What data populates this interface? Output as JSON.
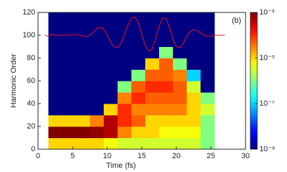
{
  "chart_data": {
    "type": "heatmap",
    "annotation": "(b)",
    "xlabel": "Time (fs)",
    "ylabel": "Harmonic Order",
    "xlim": [
      0,
      30
    ],
    "ylim": [
      0,
      120
    ],
    "xticks": [
      0,
      5,
      10,
      15,
      20,
      25,
      30
    ],
    "yticks": [
      0,
      20,
      40,
      60,
      80,
      100,
      120
    ],
    "x_bins": [
      1.5,
      3.5,
      5.5,
      7.5,
      9.5,
      11.5,
      13.5,
      15.5,
      17.5,
      19.5,
      21.5,
      23.5,
      25.5
    ],
    "y_bins": [
      0,
      10,
      20,
      30,
      40,
      50,
      60,
      70,
      80,
      90,
      100,
      110,
      120
    ],
    "values": [
      [
        1e-05,
        1e-05,
        1e-05,
        1e-05,
        5e-06,
        3e-06,
        3e-06,
        3e-06,
        3e-06,
        3e-06,
        3e-06,
        1e-06
      ],
      [
        0.001,
        0.001,
        0.001,
        0.0008,
        0.0005,
        3e-05,
        1e-05,
        1e-05,
        5e-06,
        5e-06,
        5e-06,
        1e-06
      ],
      [
        1e-05,
        1e-05,
        1e-05,
        3e-05,
        0.0005,
        0.0001,
        5e-05,
        1e-05,
        1e-05,
        1e-05,
        1e-05,
        1e-06
      ],
      [
        1e-09,
        1e-09,
        1e-09,
        1e-09,
        1e-05,
        0.0001,
        3e-05,
        3e-05,
        3e-05,
        3e-05,
        1e-05,
        3e-06
      ],
      [
        1e-09,
        1e-09,
        1e-09,
        1e-09,
        1e-09,
        3e-05,
        0.0001,
        5e-05,
        5e-05,
        5e-05,
        1e-05,
        1e-06
      ],
      [
        1e-09,
        1e-09,
        1e-09,
        1e-09,
        1e-09,
        1e-06,
        5e-05,
        0.0001,
        0.0001,
        5e-05,
        3e-06,
        1e-09
      ],
      [
        1e-09,
        1e-09,
        1e-09,
        1e-09,
        1e-09,
        1e-09,
        1e-06,
        5e-05,
        5e-05,
        3e-05,
        1e-07,
        1e-09
      ],
      [
        1e-09,
        1e-09,
        1e-09,
        1e-09,
        1e-09,
        1e-09,
        1e-09,
        1e-05,
        5e-05,
        1e-06,
        1e-09,
        1e-09
      ],
      [
        1e-09,
        1e-09,
        1e-09,
        1e-09,
        1e-09,
        1e-09,
        1e-09,
        1e-09,
        1e-06,
        1e-09,
        1e-09,
        1e-09
      ],
      [
        1e-09,
        1e-09,
        1e-09,
        1e-09,
        1e-09,
        1e-09,
        1e-09,
        1e-09,
        1e-09,
        1e-09,
        1e-09,
        1e-09
      ],
      [
        1e-09,
        1e-09,
        1e-09,
        1e-09,
        1e-09,
        1e-09,
        1e-09,
        1e-09,
        1e-09,
        1e-09,
        1e-09,
        1e-09
      ],
      [
        1e-09,
        1e-09,
        1e-09,
        1e-09,
        1e-09,
        1e-09,
        1e-09,
        1e-09,
        1e-09,
        1e-09,
        1e-09,
        1e-09
      ]
    ],
    "colorbar": {
      "scale": "log",
      "colormap": "jet",
      "lim": [
        1e-09,
        0.001
      ],
      "ticks": [
        {
          "value": 0.001,
          "label": "10⁻³"
        },
        {
          "value": 1e-05,
          "label": "10⁻⁵"
        },
        {
          "value": 1e-07,
          "label": "10⁻⁷"
        },
        {
          "value": 1e-09,
          "label": "10⁻⁹"
        }
      ]
    },
    "line": {
      "color": "#e8141c",
      "x": [
        1,
        1.5,
        2,
        2.5,
        3,
        3.5,
        4,
        4.5,
        5,
        5.5,
        6,
        6.5,
        7,
        7.5,
        8,
        8.5,
        9,
        9.5,
        10,
        10.5,
        11,
        11.5,
        12,
        12.5,
        13,
        13.5,
        14,
        14.5,
        15,
        15.5,
        16,
        16.5,
        17,
        17.5,
        18,
        18.5,
        19,
        19.5,
        20,
        20.5,
        21,
        21.5,
        22,
        22.5,
        23,
        23.5,
        24,
        24.5,
        25,
        25.5,
        26,
        26.5,
        27
      ],
      "y": [
        100,
        99,
        101,
        100,
        100,
        100,
        100,
        100,
        100.5,
        100.5,
        100,
        99.5,
        99,
        100,
        103,
        106,
        107,
        105,
        100,
        94,
        90,
        89,
        93,
        101,
        109,
        115,
        116,
        111,
        101,
        91,
        86,
        88,
        97,
        108,
        115,
        115,
        107,
        97,
        90,
        89,
        93,
        99,
        103,
        105,
        104,
        102,
        100,
        99,
        99,
        100,
        100,
        100,
        100
      ]
    }
  }
}
